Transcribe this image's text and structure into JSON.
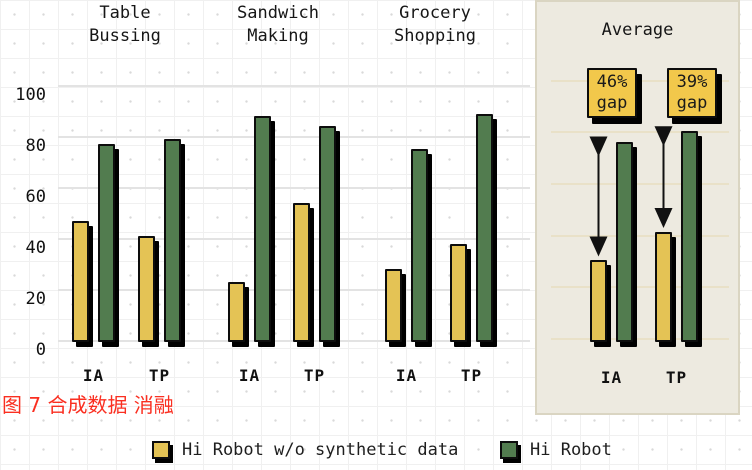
{
  "figure_caption": {
    "text": "图 7 合成数据 消融",
    "color": "#fa2f21"
  },
  "legend": {
    "items": [
      {
        "label": "Hi Robot w/o synthetic data",
        "color": "#e4c355"
      },
      {
        "label": "Hi Robot",
        "color": "#527c4f"
      }
    ]
  },
  "colors": {
    "bar_yellow": "#e4c355",
    "bar_green": "#527c4f",
    "panel_bg": "#edeae0",
    "gap_box_bg": "#f2c84b",
    "caption_red": "#fa2f21"
  },
  "chart_data": {
    "type": "bar",
    "ylim": [
      0,
      100
    ],
    "yticks": [
      0,
      20,
      40,
      60,
      80,
      100
    ],
    "grid": "on",
    "legend_position": "bottom",
    "series_names": [
      "Hi Robot w/o synthetic data",
      "Hi Robot"
    ],
    "groups": [
      {
        "title": "Table\nBussing",
        "bars": [
          {
            "x": "IA",
            "wo_synthetic": 46,
            "hi_robot": 76
          },
          {
            "x": "TP",
            "wo_synthetic": 40,
            "hi_robot": 78
          }
        ]
      },
      {
        "title": "Sandwich\nMaking",
        "bars": [
          {
            "x": "IA",
            "wo_synthetic": 22,
            "hi_robot": 87
          },
          {
            "x": "TP",
            "wo_synthetic": 53,
            "hi_robot": 83
          }
        ]
      },
      {
        "title": "Grocery\nShopping",
        "bars": [
          {
            "x": "IA",
            "wo_synthetic": 27,
            "hi_robot": 74
          },
          {
            "x": "TP",
            "wo_synthetic": 37,
            "hi_robot": 88
          }
        ]
      },
      {
        "title": "Average",
        "highlight_panel": true,
        "bars": [
          {
            "x": "IA",
            "wo_synthetic": 30,
            "hi_robot": 76,
            "gap_label": "46%\ngap"
          },
          {
            "x": "TP",
            "wo_synthetic": 41,
            "hi_robot": 80,
            "gap_label": "39%\ngap"
          }
        ]
      }
    ]
  }
}
